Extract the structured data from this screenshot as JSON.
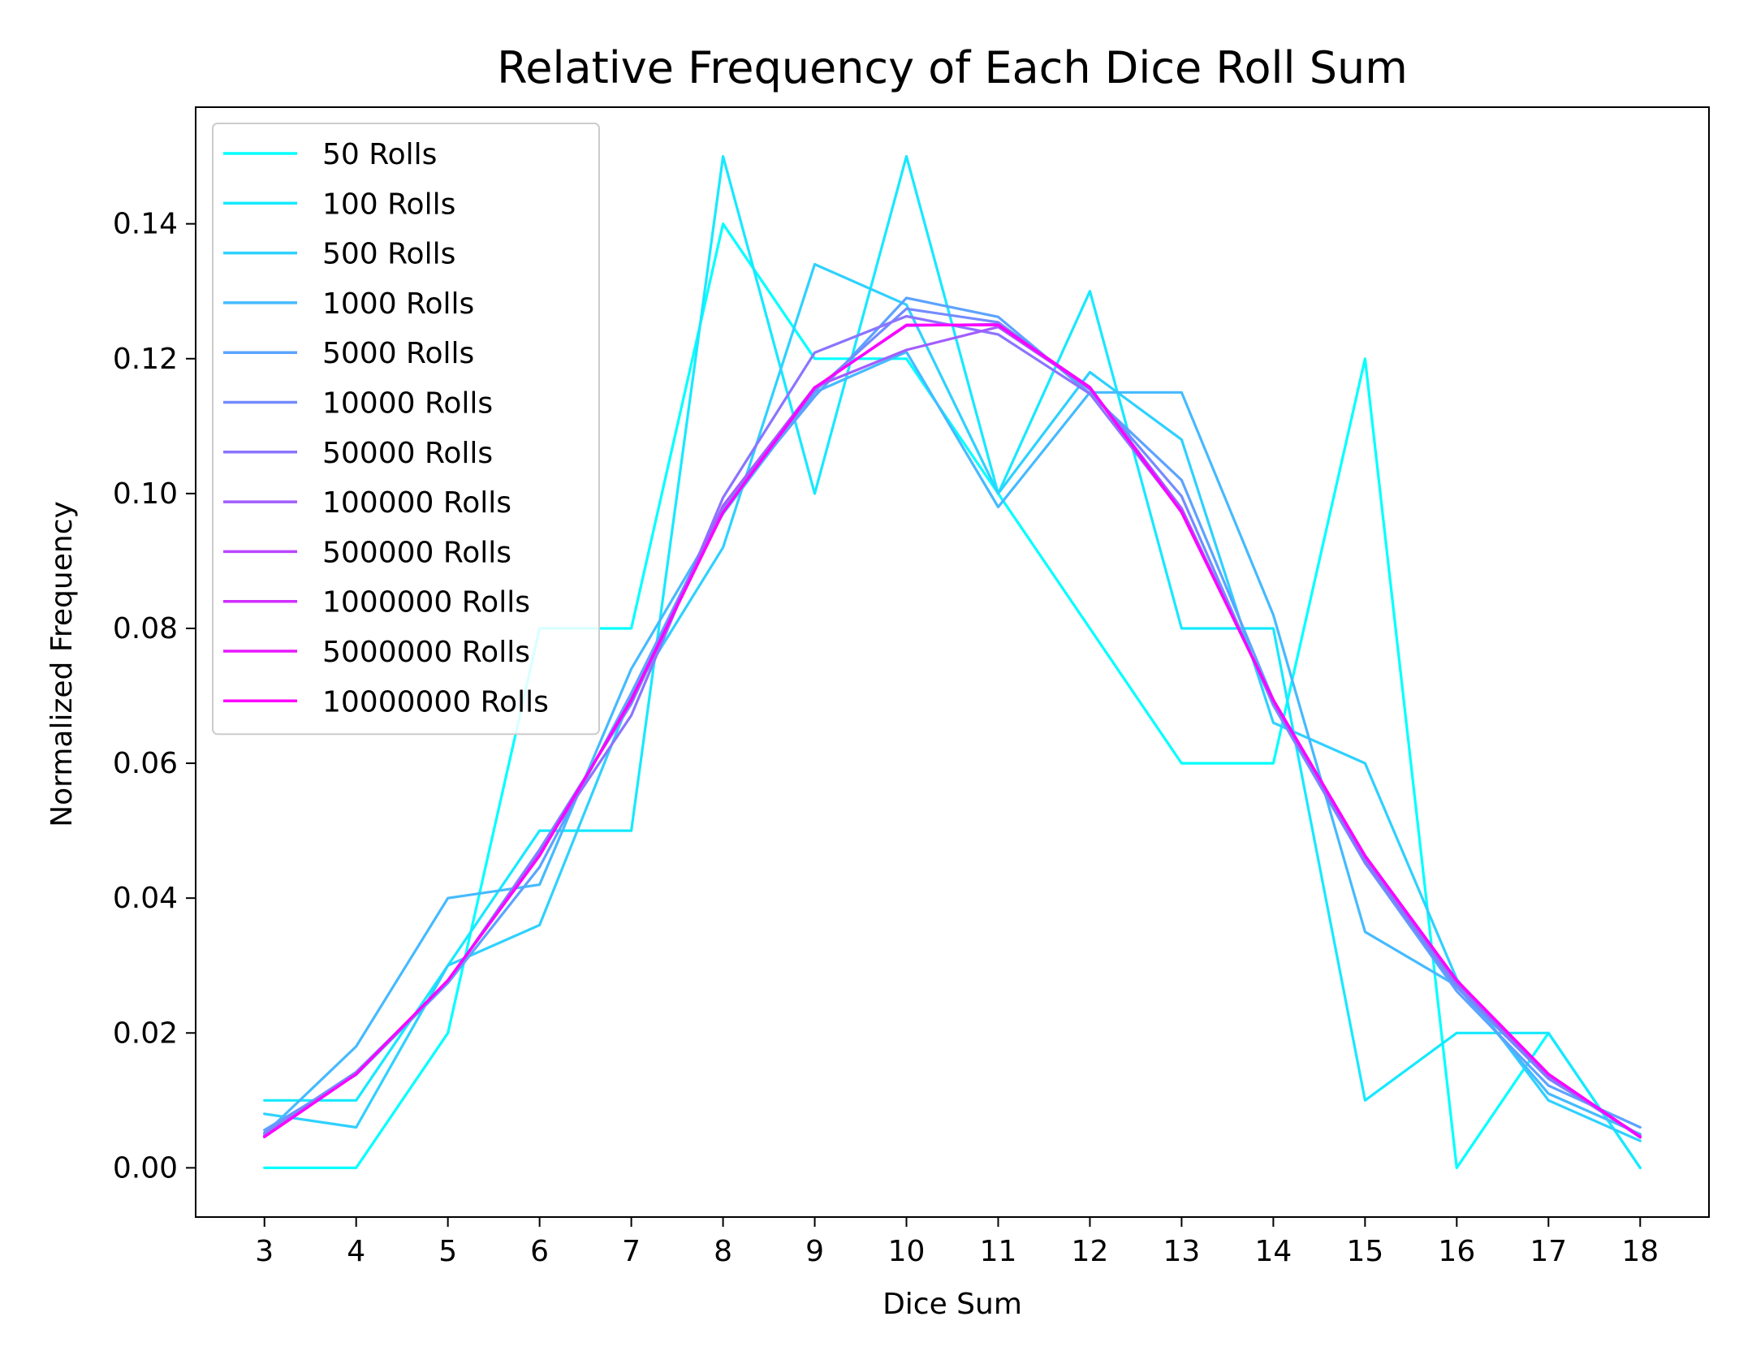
{
  "chart_data": {
    "type": "line",
    "title": "Relative Frequency of Each Dice Roll Sum",
    "xlabel": "Dice Sum",
    "ylabel": "Normalized Frequency",
    "x": [
      3,
      4,
      5,
      6,
      7,
      8,
      9,
      10,
      11,
      12,
      13,
      14,
      15,
      16,
      17,
      18
    ],
    "xlim": [
      2.25,
      18.75
    ],
    "ylim": [
      -0.0073,
      0.1573
    ],
    "yticks": [
      0.0,
      0.02,
      0.04,
      0.06,
      0.08,
      0.1,
      0.12,
      0.14
    ],
    "ytick_labels": [
      "0.00",
      "0.02",
      "0.04",
      "0.06",
      "0.08",
      "0.10",
      "0.12",
      "0.14"
    ],
    "grid": false,
    "legend_position": "top-left",
    "series": [
      {
        "name": "50 Rolls",
        "color": "#00ffff",
        "values": [
          0.0,
          0.0,
          0.02,
          0.08,
          0.08,
          0.14,
          0.12,
          0.12,
          0.1,
          0.08,
          0.06,
          0.06,
          0.12,
          0.0,
          0.02,
          0.0
        ]
      },
      {
        "name": "100 Rolls",
        "color": "#16e9ff",
        "values": [
          0.01,
          0.01,
          0.03,
          0.05,
          0.05,
          0.15,
          0.1,
          0.15,
          0.1,
          0.13,
          0.08,
          0.08,
          0.01,
          0.02,
          0.02,
          0.0
        ]
      },
      {
        "name": "500 Rolls",
        "color": "#2ed1ff",
        "values": [
          0.008,
          0.006,
          0.03,
          0.036,
          0.07,
          0.092,
          0.134,
          0.128,
          0.1,
          0.118,
          0.108,
          0.066,
          0.06,
          0.028,
          0.01,
          0.004
        ]
      },
      {
        "name": "1000 Rolls",
        "color": "#45baff",
        "values": [
          0.005,
          0.018,
          0.04,
          0.042,
          0.074,
          0.097,
          0.115,
          0.121,
          0.098,
          0.115,
          0.115,
          0.082,
          0.035,
          0.027,
          0.011,
          0.005
        ]
      },
      {
        "name": "5000 Rolls",
        "color": "#5ca3ff",
        "values": [
          0.0056,
          0.0138,
          0.0274,
          0.0446,
          0.0704,
          0.0978,
          0.1144,
          0.129,
          0.1262,
          0.1148,
          0.102,
          0.0694,
          0.0452,
          0.0262,
          0.0122,
          0.006
        ]
      },
      {
        "name": "10000 Rolls",
        "color": "#748bff",
        "values": [
          0.0052,
          0.0142,
          0.0276,
          0.0472,
          0.0688,
          0.0978,
          0.1152,
          0.1274,
          0.1254,
          0.1154,
          0.0996,
          0.0686,
          0.0452,
          0.0268,
          0.0132,
          0.0048
        ]
      },
      {
        "name": "50000 Rolls",
        "color": "#8b74ff",
        "values": [
          0.0048,
          0.0139,
          0.0277,
          0.0468,
          0.0671,
          0.0994,
          0.1209,
          0.1263,
          0.1236,
          0.1148,
          0.0973,
          0.0692,
          0.0456,
          0.0274,
          0.0134,
          0.0046
        ]
      },
      {
        "name": "100000 Rolls",
        "color": "#a25dff",
        "values": [
          0.0046,
          0.0139,
          0.0278,
          0.0466,
          0.0692,
          0.0982,
          0.1158,
          0.1213,
          0.1247,
          0.1156,
          0.0978,
          0.0691,
          0.0462,
          0.0276,
          0.0138,
          0.0045
        ]
      },
      {
        "name": "500000 Rolls",
        "color": "#b946ff",
        "values": [
          0.0046,
          0.0139,
          0.0278,
          0.0463,
          0.0695,
          0.0972,
          0.1157,
          0.1249,
          0.1251,
          0.1158,
          0.0973,
          0.0693,
          0.0462,
          0.0278,
          0.0139,
          0.0046
        ]
      },
      {
        "name": "1000000 Rolls",
        "color": "#d12eff",
        "values": [
          0.0046,
          0.0139,
          0.0278,
          0.0463,
          0.0694,
          0.0972,
          0.1157,
          0.125,
          0.125,
          0.1157,
          0.0972,
          0.0694,
          0.0463,
          0.0278,
          0.0139,
          0.0046
        ]
      },
      {
        "name": "5000000 Rolls",
        "color": "#e817ff",
        "values": [
          0.0046,
          0.0139,
          0.0278,
          0.0463,
          0.0694,
          0.0972,
          0.1157,
          0.125,
          0.125,
          0.1157,
          0.0972,
          0.0694,
          0.0463,
          0.0278,
          0.0139,
          0.0046
        ]
      },
      {
        "name": "10000000 Rolls",
        "color": "#ff00ff",
        "values": [
          0.0046,
          0.0139,
          0.0278,
          0.0463,
          0.0694,
          0.0972,
          0.1157,
          0.125,
          0.125,
          0.1157,
          0.0972,
          0.0694,
          0.0463,
          0.0278,
          0.0139,
          0.0046
        ]
      }
    ]
  }
}
